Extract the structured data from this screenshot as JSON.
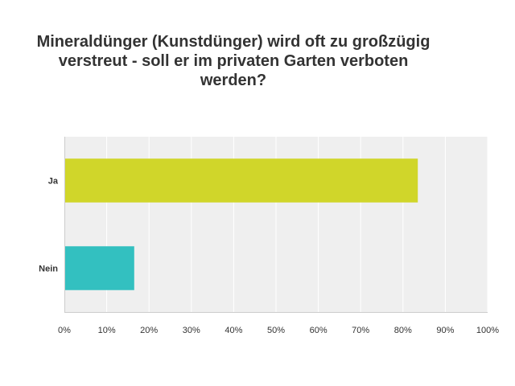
{
  "chart_data": {
    "type": "bar",
    "orientation": "horizontal",
    "title": "Mineraldünger (Kunstdünger) wird oft zu großzügig verstreut - soll er im privaten Garten verboten werden?",
    "categories": [
      "Ja",
      "Nein"
    ],
    "values": [
      83.5,
      16.5
    ],
    "colors": [
      "#d0d62a",
      "#33c0c0"
    ],
    "xlim": [
      0,
      100
    ],
    "ticks": [
      0,
      10,
      20,
      30,
      40,
      50,
      60,
      70,
      80,
      90,
      100
    ],
    "tick_labels": [
      "0%",
      "10%",
      "20%",
      "30%",
      "40%",
      "50%",
      "60%",
      "70%",
      "80%",
      "90%",
      "100%"
    ],
    "grid": true,
    "background_color": "#efefef",
    "gridline_color": "#ffffff",
    "xlabel": "",
    "ylabel": ""
  }
}
